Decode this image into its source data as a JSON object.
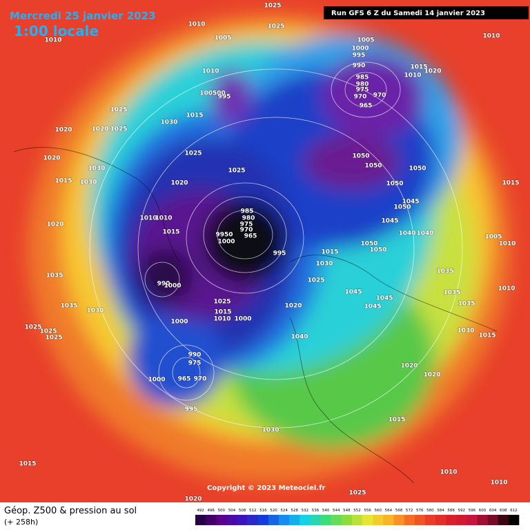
{
  "header": {
    "date": "Mercredi 25 janvier 2023",
    "local_time": "1:00 locale"
  },
  "run_info": "Run GFS 6 Z du Samedi 14 janvier 2023",
  "footer": {
    "title": "Géop. Z500 & pression au sol",
    "lead": "(+ 258h)"
  },
  "copyright": "Copyright © 2023 Meteociel.fr",
  "legend_values": [
    492,
    496,
    500,
    504,
    508,
    512,
    516,
    520,
    524,
    528,
    532,
    536,
    540,
    544,
    548,
    552,
    556,
    560,
    564,
    568,
    572,
    576,
    580,
    584,
    588,
    592,
    596,
    600,
    604,
    608,
    612
  ],
  "isobar_labels": [
    "1010",
    "1010",
    "1025",
    "1025",
    "1005",
    "1005",
    "1000",
    "995",
    "990",
    "985",
    "980",
    "975",
    "970",
    "970",
    "965",
    "1015",
    "1010",
    "1020",
    "1010",
    "1010",
    "100500",
    "995",
    "1015",
    "1025",
    "1030",
    "1020",
    "1020",
    "1025",
    "1025",
    "1020",
    "1030",
    "1015",
    "1030",
    "1020",
    "1025",
    "1050",
    "1050",
    "1050",
    "1050",
    "1045",
    "1050",
    "1045",
    "1040",
    "1040",
    "1050",
    "1050",
    "1015",
    "1005",
    "1010",
    "985",
    "980",
    "975",
    "970",
    "965",
    "9950",
    "1000",
    "1020",
    "1010",
    "1010",
    "1015",
    "1015",
    "995",
    "1030",
    "1025",
    "1035",
    "1010",
    "1045",
    "1045",
    "1045",
    "1035",
    "1035",
    "1035",
    "1035",
    "1030",
    "1025",
    "1025",
    "1025",
    "1025",
    "1015",
    "1010",
    "1000",
    "1000",
    "1020",
    "1040",
    "1030",
    "1015",
    "1020",
    "1020",
    "990",
    "975",
    "965",
    "970",
    "1000",
    "995",
    "1015",
    "1030",
    "1015",
    "1010",
    "1010",
    "1025",
    "1020",
    "990",
    "1000"
  ]
}
